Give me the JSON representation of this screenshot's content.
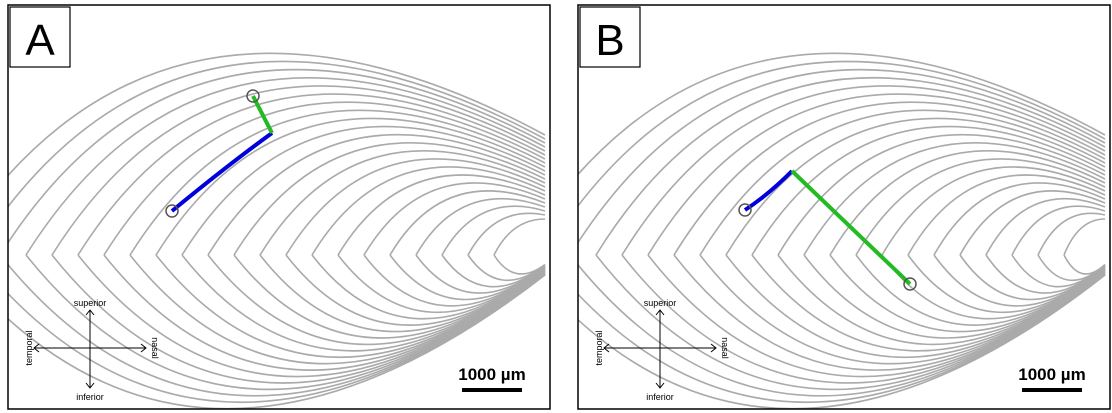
{
  "panels": [
    {
      "label": "A",
      "orientation": {
        "superior": "superior",
        "inferior": "inferior",
        "temporal": "temporal",
        "nasal": "nasal"
      },
      "scale_bar": "1000 µm"
    },
    {
      "label": "B",
      "orientation": {
        "superior": "superior",
        "inferior": "inferior",
        "temporal": "temporal",
        "nasal": "nasal"
      },
      "scale_bar": "1000 µm"
    }
  ]
}
